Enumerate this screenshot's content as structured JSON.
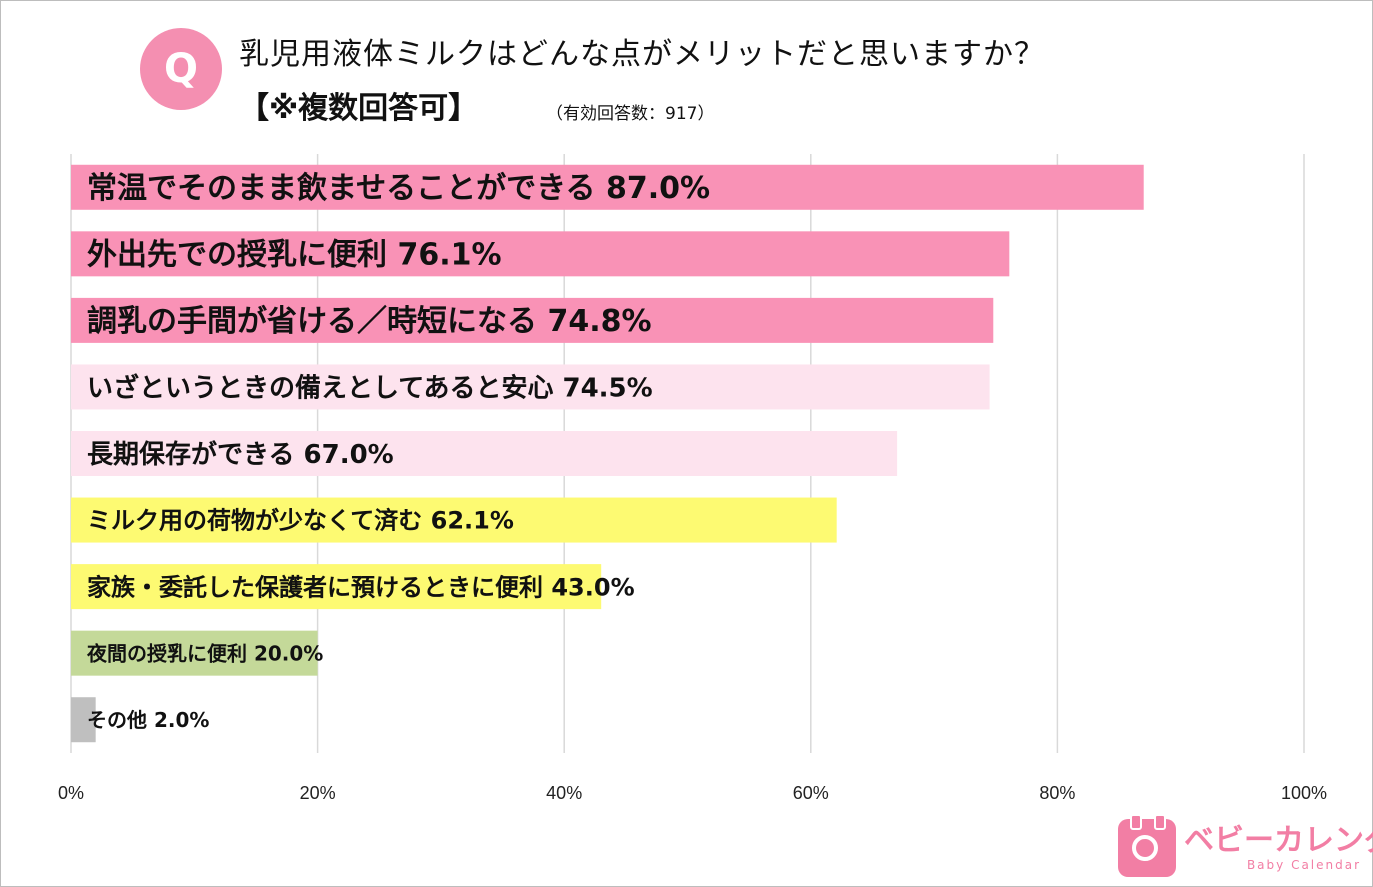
{
  "header": {
    "badge": "Q",
    "question": "乳児用液体ミルクはどんな点がメリットだと思いますか？",
    "note": "【※複数回答可】",
    "respondents": "（有効回答数：917）"
  },
  "logo": {
    "name": "ベビーカレンダー",
    "sub": "Baby Calendar"
  },
  "chart_data": {
    "type": "bar",
    "orientation": "horizontal",
    "categories": [
      "常温でそのまま飲ませることができる",
      "外出先での授乳に便利",
      "調乳の手間が省ける／時短になる",
      "いざというときの備えとしてあると安心",
      "長期保存ができる",
      "ミルク用の荷物が少なくて済む",
      "家族・委託した保護者に預けるときに便利",
      "夜間の授乳に便利",
      "その他"
    ],
    "values": [
      87.0,
      76.1,
      74.8,
      74.5,
      67.0,
      62.1,
      43.0,
      20.0,
      2.0
    ],
    "labels": [
      "常温でそのまま飲ませることができる 87.0%",
      "外出先での授乳に便利 76.1%",
      "調乳の手間が省ける／時短になる 74.8%",
      "いざというときの備えとしてあると安心  74.5%",
      "長期保存ができる 67.0%",
      "ミルク用の荷物が少なくて済む 62.1%",
      "家族・委託した保護者に預けるときに便利 43.0%",
      "夜間の授乳に便利 20.0%",
      "その他 2.0%"
    ],
    "colors": [
      "#f992b6",
      "#f992b6",
      "#f992b6",
      "#fde3ee",
      "#fde3ee",
      "#fdfa72",
      "#fdfa72",
      "#c4d999",
      "#bfbfbf"
    ],
    "xlim": [
      0,
      100
    ],
    "xticks": [
      0,
      20,
      40,
      60,
      80,
      100
    ],
    "xtick_labels": [
      "0%",
      "20%",
      "40%",
      "60%",
      "80%",
      "100%"
    ],
    "grid": true,
    "gridline_color": "#d9d9d9"
  }
}
